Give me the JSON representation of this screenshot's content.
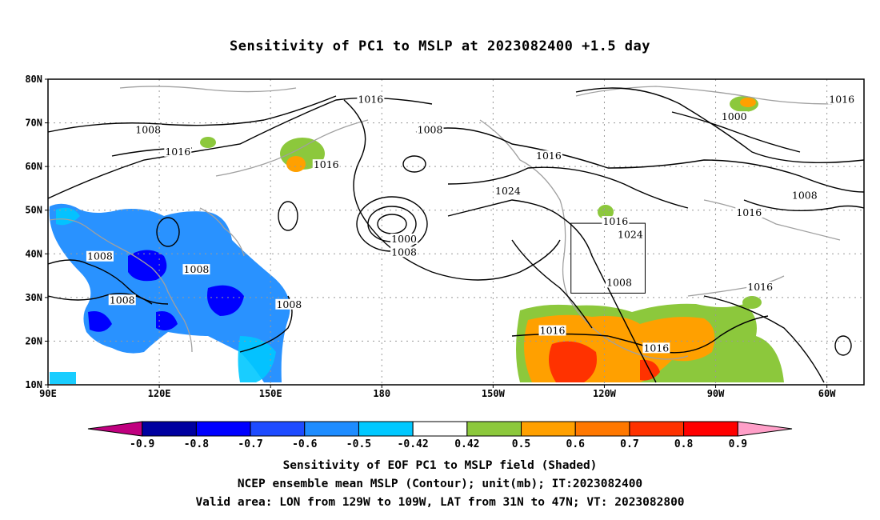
{
  "title": "Sensitivity of PC1 to MSLP at 2023082400 +1.5 day",
  "map": {
    "lon_range": [
      90,
      310
    ],
    "lat_range": [
      10,
      80
    ],
    "lat_ticks": [
      {
        "lat": 80,
        "label": "80N"
      },
      {
        "lat": 70,
        "label": "70N"
      },
      {
        "lat": 60,
        "label": "60N"
      },
      {
        "lat": 50,
        "label": "50N"
      },
      {
        "lat": 40,
        "label": "40N"
      },
      {
        "lat": 30,
        "label": "30N"
      },
      {
        "lat": 20,
        "label": "20N"
      },
      {
        "lat": 10,
        "label": "10N"
      }
    ],
    "lon_ticks": [
      {
        "lon": 90,
        "label": "90E"
      },
      {
        "lon": 120,
        "label": "120E"
      },
      {
        "lon": 150,
        "label": "150E"
      },
      {
        "lon": 180,
        "label": "180"
      },
      {
        "lon": 210,
        "label": "150W"
      },
      {
        "lon": 240,
        "label": "120W"
      },
      {
        "lon": 270,
        "label": "90W"
      },
      {
        "lon": 300,
        "label": "60W"
      }
    ],
    "valid_box": {
      "lon_min": 231,
      "lon_max": 251,
      "lat_min": 31,
      "lat_max": 47
    },
    "contour_labels": [
      {
        "text": "1016",
        "lon": 177,
        "lat": 75
      },
      {
        "text": "1008",
        "lon": 117,
        "lat": 68
      },
      {
        "text": "1016",
        "lon": 125,
        "lat": 63
      },
      {
        "text": "1008",
        "lon": 193,
        "lat": 68
      },
      {
        "text": "1016",
        "lon": 165,
        "lat": 60
      },
      {
        "text": "1016",
        "lon": 225,
        "lat": 62
      },
      {
        "text": "1024",
        "lon": 214,
        "lat": 54
      },
      {
        "text": "1000",
        "lon": 275,
        "lat": 71
      },
      {
        "text": "1016",
        "lon": 304,
        "lat": 75
      },
      {
        "text": "1008",
        "lon": 294,
        "lat": 53
      },
      {
        "text": "1016",
        "lon": 279,
        "lat": 49
      },
      {
        "text": "1016",
        "lon": 243,
        "lat": 47
      },
      {
        "text": "1024",
        "lon": 247,
        "lat": 44
      },
      {
        "text": "1000",
        "lon": 186,
        "lat": 43
      },
      {
        "text": "1008",
        "lon": 186,
        "lat": 40
      },
      {
        "text": "1008",
        "lon": 104,
        "lat": 39
      },
      {
        "text": "1008",
        "lon": 130,
        "lat": 36
      },
      {
        "text": "1008",
        "lon": 244,
        "lat": 33
      },
      {
        "text": "1016",
        "lon": 282,
        "lat": 32
      },
      {
        "text": "1008",
        "lon": 110,
        "lat": 29
      },
      {
        "text": "1008",
        "lon": 155,
        "lat": 28
      },
      {
        "text": "1016",
        "lon": 226,
        "lat": 22
      },
      {
        "text": "1016",
        "lon": 254,
        "lat": 18
      }
    ]
  },
  "colorbar": {
    "bins": [
      {
        "label": "-0.9",
        "color": "#c0007f"
      },
      {
        "label": "-0.8",
        "color": "#0000a0"
      },
      {
        "label": "-0.7",
        "color": "#0000ff"
      },
      {
        "label": "-0.6",
        "color": "#1e4bff"
      },
      {
        "label": "-0.5",
        "color": "#1e8cff"
      },
      {
        "label": "-0.42",
        "color": "#00c8ff"
      },
      {
        "label": "0.42",
        "color": "#ffffff"
      },
      {
        "label": "0.5",
        "color": "#8cc83c"
      },
      {
        "label": "0.6",
        "color": "#ffa000"
      },
      {
        "label": "0.7",
        "color": "#ff7800"
      },
      {
        "label": "0.8",
        "color": "#ff3200"
      },
      {
        "label": "0.9",
        "color": "#ff0000"
      }
    ],
    "end_high_color": "#ff9fc8"
  },
  "captions": {
    "line1": "Sensitivity of EOF PC1 to MSLP field (Shaded)",
    "line2": "NCEP ensemble mean MSLP (Contour); unit(mb); IT:2023082400",
    "line3": "Valid area: LON from 129W to 109W, LAT from 31N to 47N; VT: 2023082800"
  }
}
